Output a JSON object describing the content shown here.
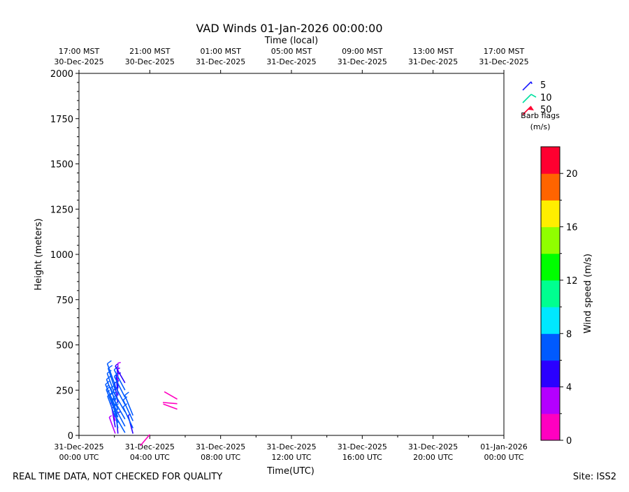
{
  "chart_data": {
    "type": "scatter",
    "title": "VAD Winds 01-Jan-2026 00:00:00",
    "top_xlabel": "Time (local)",
    "xlabel": "Time(UTC)",
    "ylabel": "Height (meters)",
    "xlim_hours_utc": [
      0,
      24
    ],
    "ylim": [
      0,
      2000
    ],
    "y_ticks": [
      "0",
      "250",
      "500",
      "750",
      "1000",
      "1250",
      "1500",
      "1750",
      "2000"
    ],
    "x_ticks_utc": [
      {
        "h": 0,
        "line1": "31-Dec-2025",
        "line2": "00:00 UTC"
      },
      {
        "h": 4,
        "line1": "31-Dec-2025",
        "line2": "04:00 UTC"
      },
      {
        "h": 8,
        "line1": "31-Dec-2025",
        "line2": "08:00 UTC"
      },
      {
        "h": 12,
        "line1": "31-Dec-2025",
        "line2": "12:00 UTC"
      },
      {
        "h": 16,
        "line1": "31-Dec-2025",
        "line2": "16:00 UTC"
      },
      {
        "h": 20,
        "line1": "31-Dec-2025",
        "line2": "20:00 UTC"
      },
      {
        "h": 24,
        "line1": "01-Jan-2026",
        "line2": "00:00 UTC"
      }
    ],
    "x_ticks_local": [
      {
        "h": 0,
        "line1": "17:00 MST",
        "line2": "30-Dec-2025"
      },
      {
        "h": 4,
        "line1": "21:00 MST",
        "line2": "30-Dec-2025"
      },
      {
        "h": 8,
        "line1": "01:00 MST",
        "line2": "31-Dec-2025"
      },
      {
        "h": 12,
        "line1": "05:00 MST",
        "line2": "31-Dec-2025"
      },
      {
        "h": 16,
        "line1": "09:00 MST",
        "line2": "31-Dec-2025"
      },
      {
        "h": 20,
        "line1": "13:00 MST",
        "line2": "31-Dec-2025"
      },
      {
        "h": 24,
        "line1": "17:00 MST",
        "line2": "31-Dec-2025"
      }
    ],
    "barb_legend": {
      "items": [
        {
          "label": "5",
          "color": "#1a1aff"
        },
        {
          "label": "10",
          "color": "#00e0a0"
        },
        {
          "label": "50",
          "color": "#ff0030"
        }
      ],
      "title_line1": "Barb flags",
      "title_line2": "(m/s)"
    },
    "colorbar": {
      "label": "Wind speed (m/s)",
      "ticks": [
        "0",
        "4",
        "8",
        "12",
        "16",
        "20"
      ],
      "range": [
        0,
        22
      ],
      "colors": [
        "#ff00c0",
        "#b400ff",
        "#2a00ff",
        "#005aff",
        "#00e8ff",
        "#00ff90",
        "#00ff00",
        "#90ff00",
        "#ffee00",
        "#ff6400",
        "#ff0030"
      ]
    },
    "series": [
      {
        "time_h": 2.05,
        "points": [
          {
            "height": 10,
            "speed": 3.2,
            "dir": 340
          },
          {
            "height": 45,
            "speed": 4.5,
            "dir": 350
          },
          {
            "height": 80,
            "speed": 3.8,
            "dir": 345
          },
          {
            "height": 100,
            "speed": 6.5,
            "dir": 340
          },
          {
            "height": 130,
            "speed": 7.5,
            "dir": 338
          },
          {
            "height": 160,
            "speed": 7.5,
            "dir": 336
          },
          {
            "height": 190,
            "speed": 7.0,
            "dir": 338
          },
          {
            "height": 220,
            "speed": 7.2,
            "dir": 340
          },
          {
            "height": 250,
            "speed": 6.8,
            "dir": 342
          },
          {
            "height": 275,
            "speed": 7.0,
            "dir": 340
          }
        ]
      },
      {
        "time_h": 2.2,
        "points": [
          {
            "height": 10,
            "speed": 5.0,
            "dir": 355
          },
          {
            "height": 40,
            "speed": 6.5,
            "dir": 350
          },
          {
            "height": 70,
            "speed": 7.0,
            "dir": 345
          },
          {
            "height": 100,
            "speed": 7.2,
            "dir": 340
          },
          {
            "height": 140,
            "speed": 7.0,
            "dir": 342
          },
          {
            "height": 180,
            "speed": 5.0,
            "dir": 350
          },
          {
            "height": 220,
            "speed": 5.5,
            "dir": 355
          },
          {
            "height": 260,
            "speed": 4.5,
            "dir": 358
          },
          {
            "height": 300,
            "speed": 3.5,
            "dir": 0
          }
        ]
      },
      {
        "time_h": 2.6,
        "points": [
          {
            "height": 15,
            "speed": 7.0,
            "dir": 330
          },
          {
            "height": 50,
            "speed": 7.2,
            "dir": 332
          },
          {
            "height": 90,
            "speed": 7.5,
            "dir": 330
          },
          {
            "height": 130,
            "speed": 7.5,
            "dir": 330
          },
          {
            "height": 170,
            "speed": 7.0,
            "dir": 332
          },
          {
            "height": 210,
            "speed": 7.2,
            "dir": 333
          },
          {
            "height": 250,
            "speed": 6.8,
            "dir": 332
          },
          {
            "height": 290,
            "speed": 4.5,
            "dir": 330
          }
        ]
      },
      {
        "time_h": 3.05,
        "points": [
          {
            "height": 10,
            "speed": 4.0,
            "dir": 345
          },
          {
            "height": 40,
            "speed": 7.0,
            "dir": 335
          },
          {
            "height": 80,
            "speed": 6.8,
            "dir": 335
          },
          {
            "height": 110,
            "speed": 6.0,
            "dir": 338
          }
        ]
      },
      {
        "time_h": 4.0,
        "points": [
          {
            "height": 5,
            "speed": 1.5,
            "dir": 220
          }
        ]
      },
      {
        "time_h": 5.55,
        "points": [
          {
            "height": 145,
            "speed": 1.5,
            "dir": 290
          },
          {
            "height": 175,
            "speed": 1.2,
            "dir": 275
          },
          {
            "height": 200,
            "speed": 1.5,
            "dir": 300
          }
        ]
      }
    ]
  },
  "footer": {
    "left": "REAL TIME DATA, NOT CHECKED FOR QUALITY",
    "right": "Site: ISS2"
  }
}
